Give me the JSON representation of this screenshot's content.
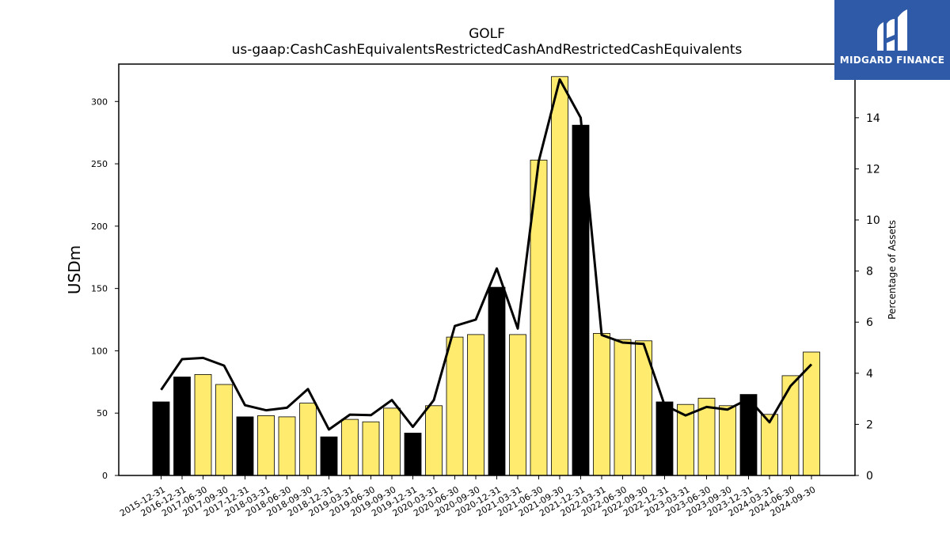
{
  "chart_data": {
    "type": "bar",
    "title": "GOLF",
    "subtitle": "us-gaap:CashCashEquivalentsRestrictedCashAndRestrictedCashEquivalents",
    "ylabel": "USDm",
    "y2label": "Percentage of Assets",
    "ylim": [
      0,
      330
    ],
    "y2lim": [
      0,
      16.1
    ],
    "yticks": [
      0,
      50,
      100,
      150,
      200,
      250,
      300
    ],
    "y2ticks": [
      0,
      2,
      4,
      6,
      8,
      10,
      12,
      14
    ],
    "categories": [
      "2015-12-31",
      "2016-12-31",
      "2017-06-30",
      "2017-09-30",
      "2017-12-31",
      "2018-03-31",
      "2018-06-30",
      "2018-09-30",
      "2018-12-31",
      "2019-03-31",
      "2019-06-30",
      "2019-09-30",
      "2019-12-31",
      "2020-03-31",
      "2020-06-30",
      "2020-09-30",
      "2020-12-31",
      "2021-03-31",
      "2021-06-30",
      "2021-09-30",
      "2021-12-31",
      "2022-03-31",
      "2022-06-30",
      "2022-09-30",
      "2022-12-31",
      "2023-03-31",
      "2023-06-30",
      "2023-09-30",
      "2023-12-31",
      "2024-03-31",
      "2024-06-30",
      "2024-09-30"
    ],
    "series": [
      {
        "type": "bar",
        "values": [
          59,
          79,
          81,
          73,
          47,
          48,
          47,
          58,
          31,
          45,
          43,
          54,
          34,
          56,
          111,
          113,
          151,
          113,
          253,
          320,
          281,
          114,
          109,
          108,
          59,
          57,
          62,
          56,
          65,
          49,
          80,
          99
        ],
        "year_end": [
          true,
          true,
          false,
          false,
          true,
          false,
          false,
          false,
          true,
          false,
          false,
          false,
          true,
          false,
          false,
          false,
          true,
          false,
          false,
          false,
          true,
          false,
          false,
          false,
          true,
          false,
          false,
          false,
          true,
          false,
          false,
          false
        ]
      },
      {
        "type": "line",
        "axis": "right",
        "values": [
          3.35,
          4.55,
          4.6,
          4.3,
          2.75,
          2.55,
          2.65,
          3.38,
          1.8,
          2.38,
          2.36,
          2.95,
          1.9,
          2.95,
          5.85,
          6.1,
          8.1,
          5.75,
          12.3,
          15.5,
          14.0,
          5.5,
          5.2,
          5.15,
          2.75,
          2.35,
          2.68,
          2.58,
          3.0,
          2.08,
          3.5,
          4.35
        ]
      }
    ],
    "colors": {
      "bar_year_end": "#000000",
      "bar_quarter": "#ffec6e",
      "bar_edge": "#000000",
      "line": "#000000"
    },
    "grid": false
  },
  "logo": {
    "text": "MIDGARD FINANCE",
    "background": "#2f5aa8"
  }
}
